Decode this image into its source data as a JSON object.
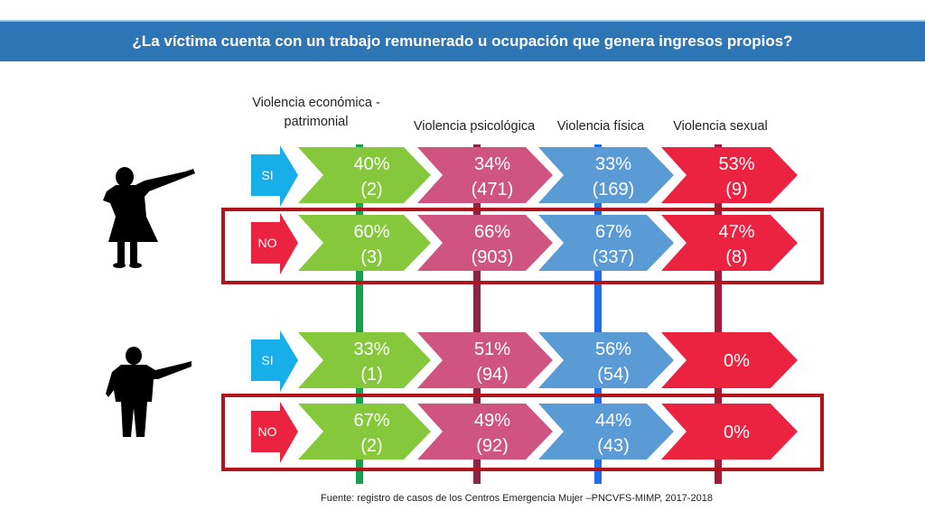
{
  "title": "¿La víctima cuenta con un trabajo remunerado u ocupación que genera ingresos propios?",
  "source": "Fuente: registro de casos de los Centros Emergencia Mujer –PNCVFS-MIMP,  2017-2018",
  "colors": {
    "header": "#2e75b6",
    "si_arrow": "#17aee9",
    "no_arrow": "#ec2340",
    "box_border": "#b0151e",
    "columns": [
      "#86c83c",
      "#cf5580",
      "#5b9bd5",
      "#ec2340"
    ],
    "lines": [
      "#16a24d",
      "#8c2445",
      "#1f6fea",
      "#a31b38"
    ]
  },
  "icons": {
    "group_1": "woman-silhouette-icon",
    "group_2": "man-silhouette-icon"
  },
  "chart_data": {
    "type": "table",
    "title": "¿La víctima cuenta con un trabajo remunerado u ocupación que genera ingresos propios?",
    "columns": [
      "Violencia económica -\npatrimonial",
      "Violencia psicológica",
      "Violencia física",
      "Violencia sexual"
    ],
    "groups": [
      {
        "icon": "woman-silhouette-icon",
        "rows": [
          {
            "label": "SI",
            "cells": [
              {
                "pct": "40%",
                "count": "(2)"
              },
              {
                "pct": "34%",
                "count": "(471)"
              },
              {
                "pct": "33%",
                "count": "(169)"
              },
              {
                "pct": "53%",
                "count": "(9)"
              }
            ]
          },
          {
            "label": "NO",
            "cells": [
              {
                "pct": "60%",
                "count": "(3)"
              },
              {
                "pct": "66%",
                "count": "(903)"
              },
              {
                "pct": "67%",
                "count": "(337)"
              },
              {
                "pct": "47%",
                "count": "(8)"
              }
            ]
          }
        ]
      },
      {
        "icon": "man-silhouette-icon",
        "rows": [
          {
            "label": "SI",
            "cells": [
              {
                "pct": "33%",
                "count": "(1)"
              },
              {
                "pct": "51%",
                "count": "(94)"
              },
              {
                "pct": "56%",
                "count": "(54)"
              },
              {
                "pct": "0%",
                "count": ""
              }
            ]
          },
          {
            "label": "NO",
            "cells": [
              {
                "pct": "67%",
                "count": "(2)"
              },
              {
                "pct": "49%",
                "count": "(92)"
              },
              {
                "pct": "44%",
                "count": "(43)"
              },
              {
                "pct": "0%",
                "count": ""
              }
            ]
          }
        ]
      }
    ]
  }
}
